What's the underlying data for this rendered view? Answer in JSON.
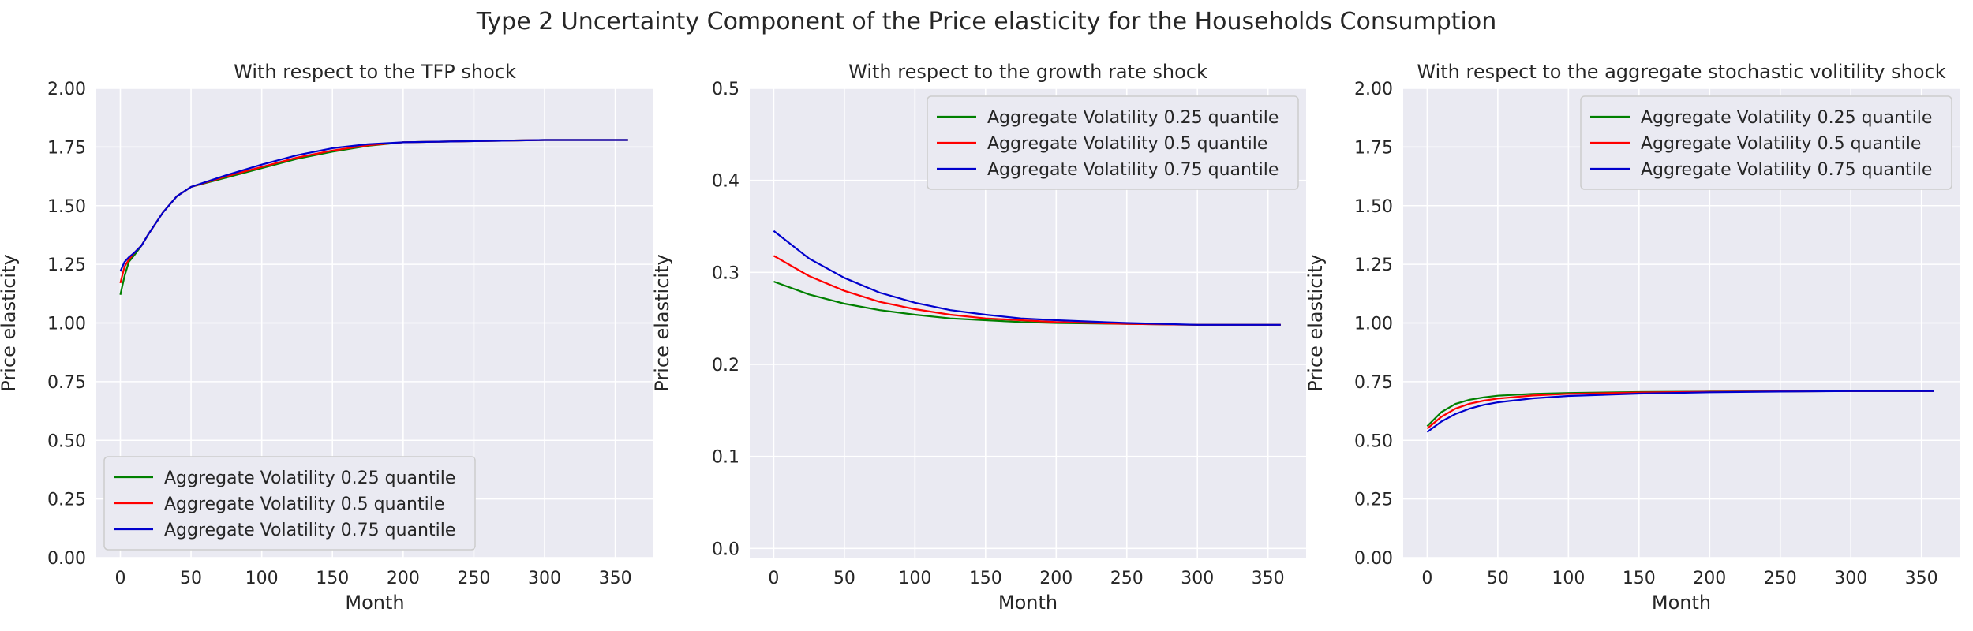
{
  "suptitle": "Type 2 Uncertainty Component of the Price elasticity for the Households Consumption",
  "colors": {
    "plot_bg": "#eaeaf2",
    "grid": "#ffffff",
    "text": "#262626",
    "legend_bg": "#eaeaf2",
    "legend_border": "#cccccc"
  },
  "chart_data": [
    {
      "type": "line",
      "title": "With respect to the TFP shock",
      "xlabel": "Month",
      "ylabel": "Price elasticity",
      "xlim": [
        -17,
        377
      ],
      "ylim": [
        0.0,
        2.0
      ],
      "xticks": [
        0,
        50,
        100,
        150,
        200,
        250,
        300,
        350
      ],
      "yticks": [
        "0.00",
        "0.25",
        "0.50",
        "0.75",
        "1.00",
        "1.25",
        "1.50",
        "1.75",
        "2.00"
      ],
      "grid": true,
      "legend_loc": "lower-left",
      "series": [
        {
          "name": "Aggregate Volatility 0.25 quantile",
          "color": "#008000",
          "x": [
            0,
            3,
            6,
            10,
            15,
            20,
            30,
            40,
            50,
            75,
            100,
            125,
            150,
            175,
            200,
            250,
            300,
            359
          ],
          "y": [
            1.12,
            1.2,
            1.26,
            1.29,
            1.33,
            1.38,
            1.47,
            1.54,
            1.58,
            1.62,
            1.66,
            1.7,
            1.73,
            1.755,
            1.77,
            1.775,
            1.78,
            1.78
          ]
        },
        {
          "name": "Aggregate Volatility 0.5 quantile",
          "color": "#ff0000",
          "x": [
            0,
            3,
            6,
            10,
            15,
            20,
            30,
            40,
            50,
            75,
            100,
            125,
            150,
            175,
            200,
            250,
            300,
            359
          ],
          "y": [
            1.17,
            1.24,
            1.27,
            1.3,
            1.33,
            1.38,
            1.47,
            1.54,
            1.58,
            1.625,
            1.665,
            1.705,
            1.735,
            1.757,
            1.77,
            1.775,
            1.78,
            1.78
          ]
        },
        {
          "name": "Aggregate Volatility 0.75 quantile",
          "color": "#0000cd",
          "x": [
            0,
            3,
            6,
            10,
            15,
            20,
            30,
            40,
            50,
            75,
            100,
            125,
            150,
            175,
            200,
            250,
            300,
            359
          ],
          "y": [
            1.22,
            1.26,
            1.28,
            1.3,
            1.33,
            1.38,
            1.47,
            1.54,
            1.58,
            1.63,
            1.675,
            1.715,
            1.745,
            1.762,
            1.77,
            1.775,
            1.78,
            1.78
          ]
        }
      ]
    },
    {
      "type": "line",
      "title": "With respect to the growth rate shock",
      "xlabel": "Month",
      "ylabel": "Price elasticity",
      "xlim": [
        -17,
        377
      ],
      "ylim": [
        -0.01,
        0.5
      ],
      "xticks": [
        0,
        50,
        100,
        150,
        200,
        250,
        300,
        350
      ],
      "yticks": [
        "0.0",
        "0.1",
        "0.2",
        "0.3",
        "0.4",
        "0.5"
      ],
      "grid": true,
      "legend_loc": "upper-right",
      "series": [
        {
          "name": "Aggregate Volatility 0.25 quantile",
          "color": "#008000",
          "x": [
            0,
            25,
            50,
            75,
            100,
            125,
            150,
            175,
            200,
            250,
            300,
            359
          ],
          "y": [
            0.29,
            0.276,
            0.266,
            0.259,
            0.254,
            0.25,
            0.248,
            0.246,
            0.245,
            0.244,
            0.243,
            0.243
          ]
        },
        {
          "name": "Aggregate Volatility 0.5 quantile",
          "color": "#ff0000",
          "x": [
            0,
            25,
            50,
            75,
            100,
            125,
            150,
            175,
            200,
            250,
            300,
            359
          ],
          "y": [
            0.318,
            0.296,
            0.28,
            0.268,
            0.26,
            0.254,
            0.25,
            0.248,
            0.246,
            0.244,
            0.243,
            0.243
          ]
        },
        {
          "name": "Aggregate Volatility 0.75 quantile",
          "color": "#0000cd",
          "x": [
            0,
            25,
            50,
            75,
            100,
            125,
            150,
            175,
            200,
            250,
            300,
            359
          ],
          "y": [
            0.345,
            0.315,
            0.294,
            0.278,
            0.267,
            0.259,
            0.254,
            0.25,
            0.248,
            0.245,
            0.243,
            0.243
          ]
        }
      ]
    },
    {
      "type": "line",
      "title": "With respect to the aggregate stochastic volitility shock",
      "xlabel": "Month",
      "ylabel": "Price elasticity",
      "xlim": [
        -17,
        377
      ],
      "ylim": [
        0.0,
        2.0
      ],
      "xticks": [
        0,
        50,
        100,
        150,
        200,
        250,
        300,
        350
      ],
      "yticks": [
        "0.00",
        "0.25",
        "0.50",
        "0.75",
        "1.00",
        "1.25",
        "1.50",
        "1.75",
        "2.00"
      ],
      "grid": true,
      "legend_loc": "upper-right",
      "series": [
        {
          "name": "Aggregate Volatility 0.25 quantile",
          "color": "#008000",
          "x": [
            0,
            10,
            20,
            30,
            40,
            50,
            75,
            100,
            150,
            200,
            250,
            300,
            359
          ],
          "y": [
            0.56,
            0.62,
            0.655,
            0.673,
            0.683,
            0.69,
            0.698,
            0.702,
            0.706,
            0.708,
            0.709,
            0.71,
            0.71
          ]
        },
        {
          "name": "Aggregate Volatility 0.5 quantile",
          "color": "#ff0000",
          "x": [
            0,
            10,
            20,
            30,
            40,
            50,
            75,
            100,
            150,
            200,
            250,
            300,
            359
          ],
          "y": [
            0.55,
            0.6,
            0.635,
            0.656,
            0.669,
            0.678,
            0.691,
            0.698,
            0.704,
            0.707,
            0.709,
            0.71,
            0.71
          ]
        },
        {
          "name": "Aggregate Volatility 0.75 quantile",
          "color": "#0000cd",
          "x": [
            0,
            10,
            20,
            30,
            40,
            50,
            75,
            100,
            150,
            200,
            250,
            300,
            359
          ],
          "y": [
            0.535,
            0.58,
            0.612,
            0.635,
            0.651,
            0.662,
            0.679,
            0.689,
            0.699,
            0.705,
            0.708,
            0.71,
            0.71
          ]
        }
      ]
    }
  ]
}
